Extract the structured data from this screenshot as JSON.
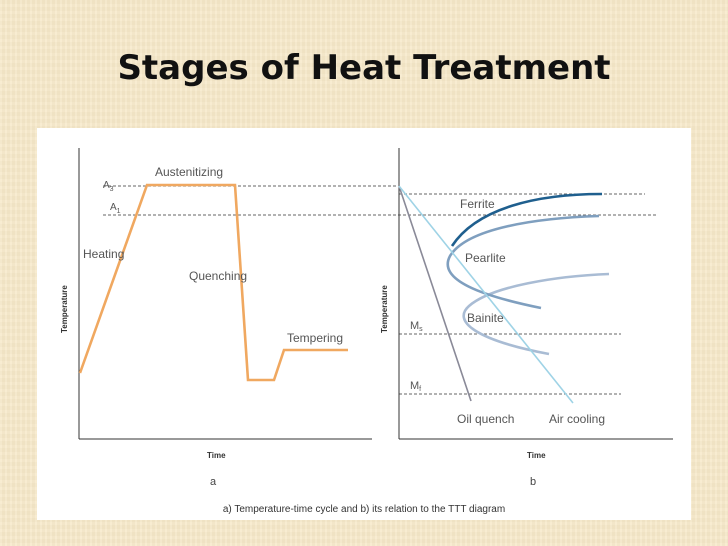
{
  "slide": {
    "title": "Stages of Heat Treatment"
  },
  "panel_a": {
    "labels": {
      "a3": "A3",
      "a1": "A1",
      "austenitizing": "Austenitizing",
      "heating": "Heating",
      "quenching": "Quenching",
      "tempering": "Tempering"
    },
    "y_axis": "Temperature",
    "x_axis": "Time",
    "letter": "a"
  },
  "panel_b": {
    "labels": {
      "ferrite": "Ferrite",
      "pearlite": "Pearlite",
      "bainite": "Bainite",
      "ms": "Ms",
      "mf": "Mf",
      "oil_quench": "Oil quench",
      "air_cooling": "Air cooling"
    },
    "y_axis": "Temperature",
    "x_axis": "Time",
    "letter": "b"
  },
  "caption": "a) Temperature-time cycle and  b) its relation to the TTT diagram",
  "colors": {
    "cycle_line": "#f0a860",
    "ferrite_curve": "#1f5f8e",
    "pearlite_curve": "#7f9fbf",
    "bainite_curve": "#a9bcd4",
    "oil_quench": "#8a8a98",
    "air_cooling": "#9fd3e6"
  }
}
